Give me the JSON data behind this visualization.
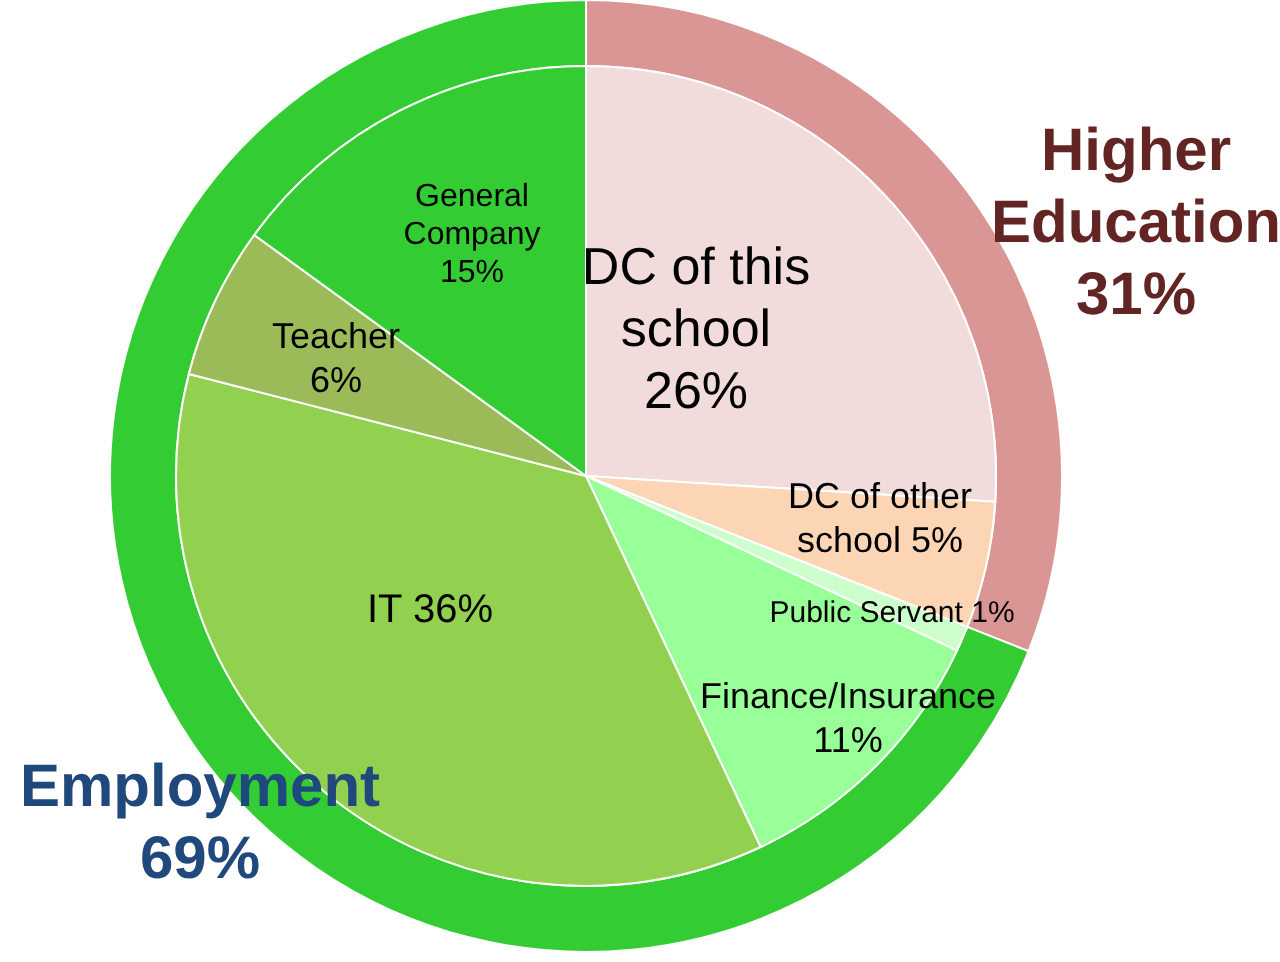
{
  "chart_data": [
    {
      "type": "donut",
      "categories": [
        "Higher Education",
        "Employment"
      ],
      "values": [
        31,
        69
      ],
      "colors": [
        "#d99694",
        "#33cc33"
      ],
      "value_labels": [
        "31%",
        "69%"
      ]
    },
    {
      "type": "pie",
      "categories": [
        "DC of this school",
        "DC of other school",
        "Public Servant",
        "Finance/Insurance",
        "IT",
        "Teacher",
        "General Company"
      ],
      "values": [
        26,
        5,
        1,
        11,
        36,
        6,
        15
      ],
      "colors": [
        "#f2dcdb",
        "#fcd5b5",
        "#ccffcc",
        "#99ff99",
        "#92d050",
        "#9bbb59",
        "#33cc33"
      ],
      "value_labels": [
        "26%",
        "5%",
        "1%",
        "11%",
        "36%",
        "6%",
        "15%"
      ]
    }
  ]
}
